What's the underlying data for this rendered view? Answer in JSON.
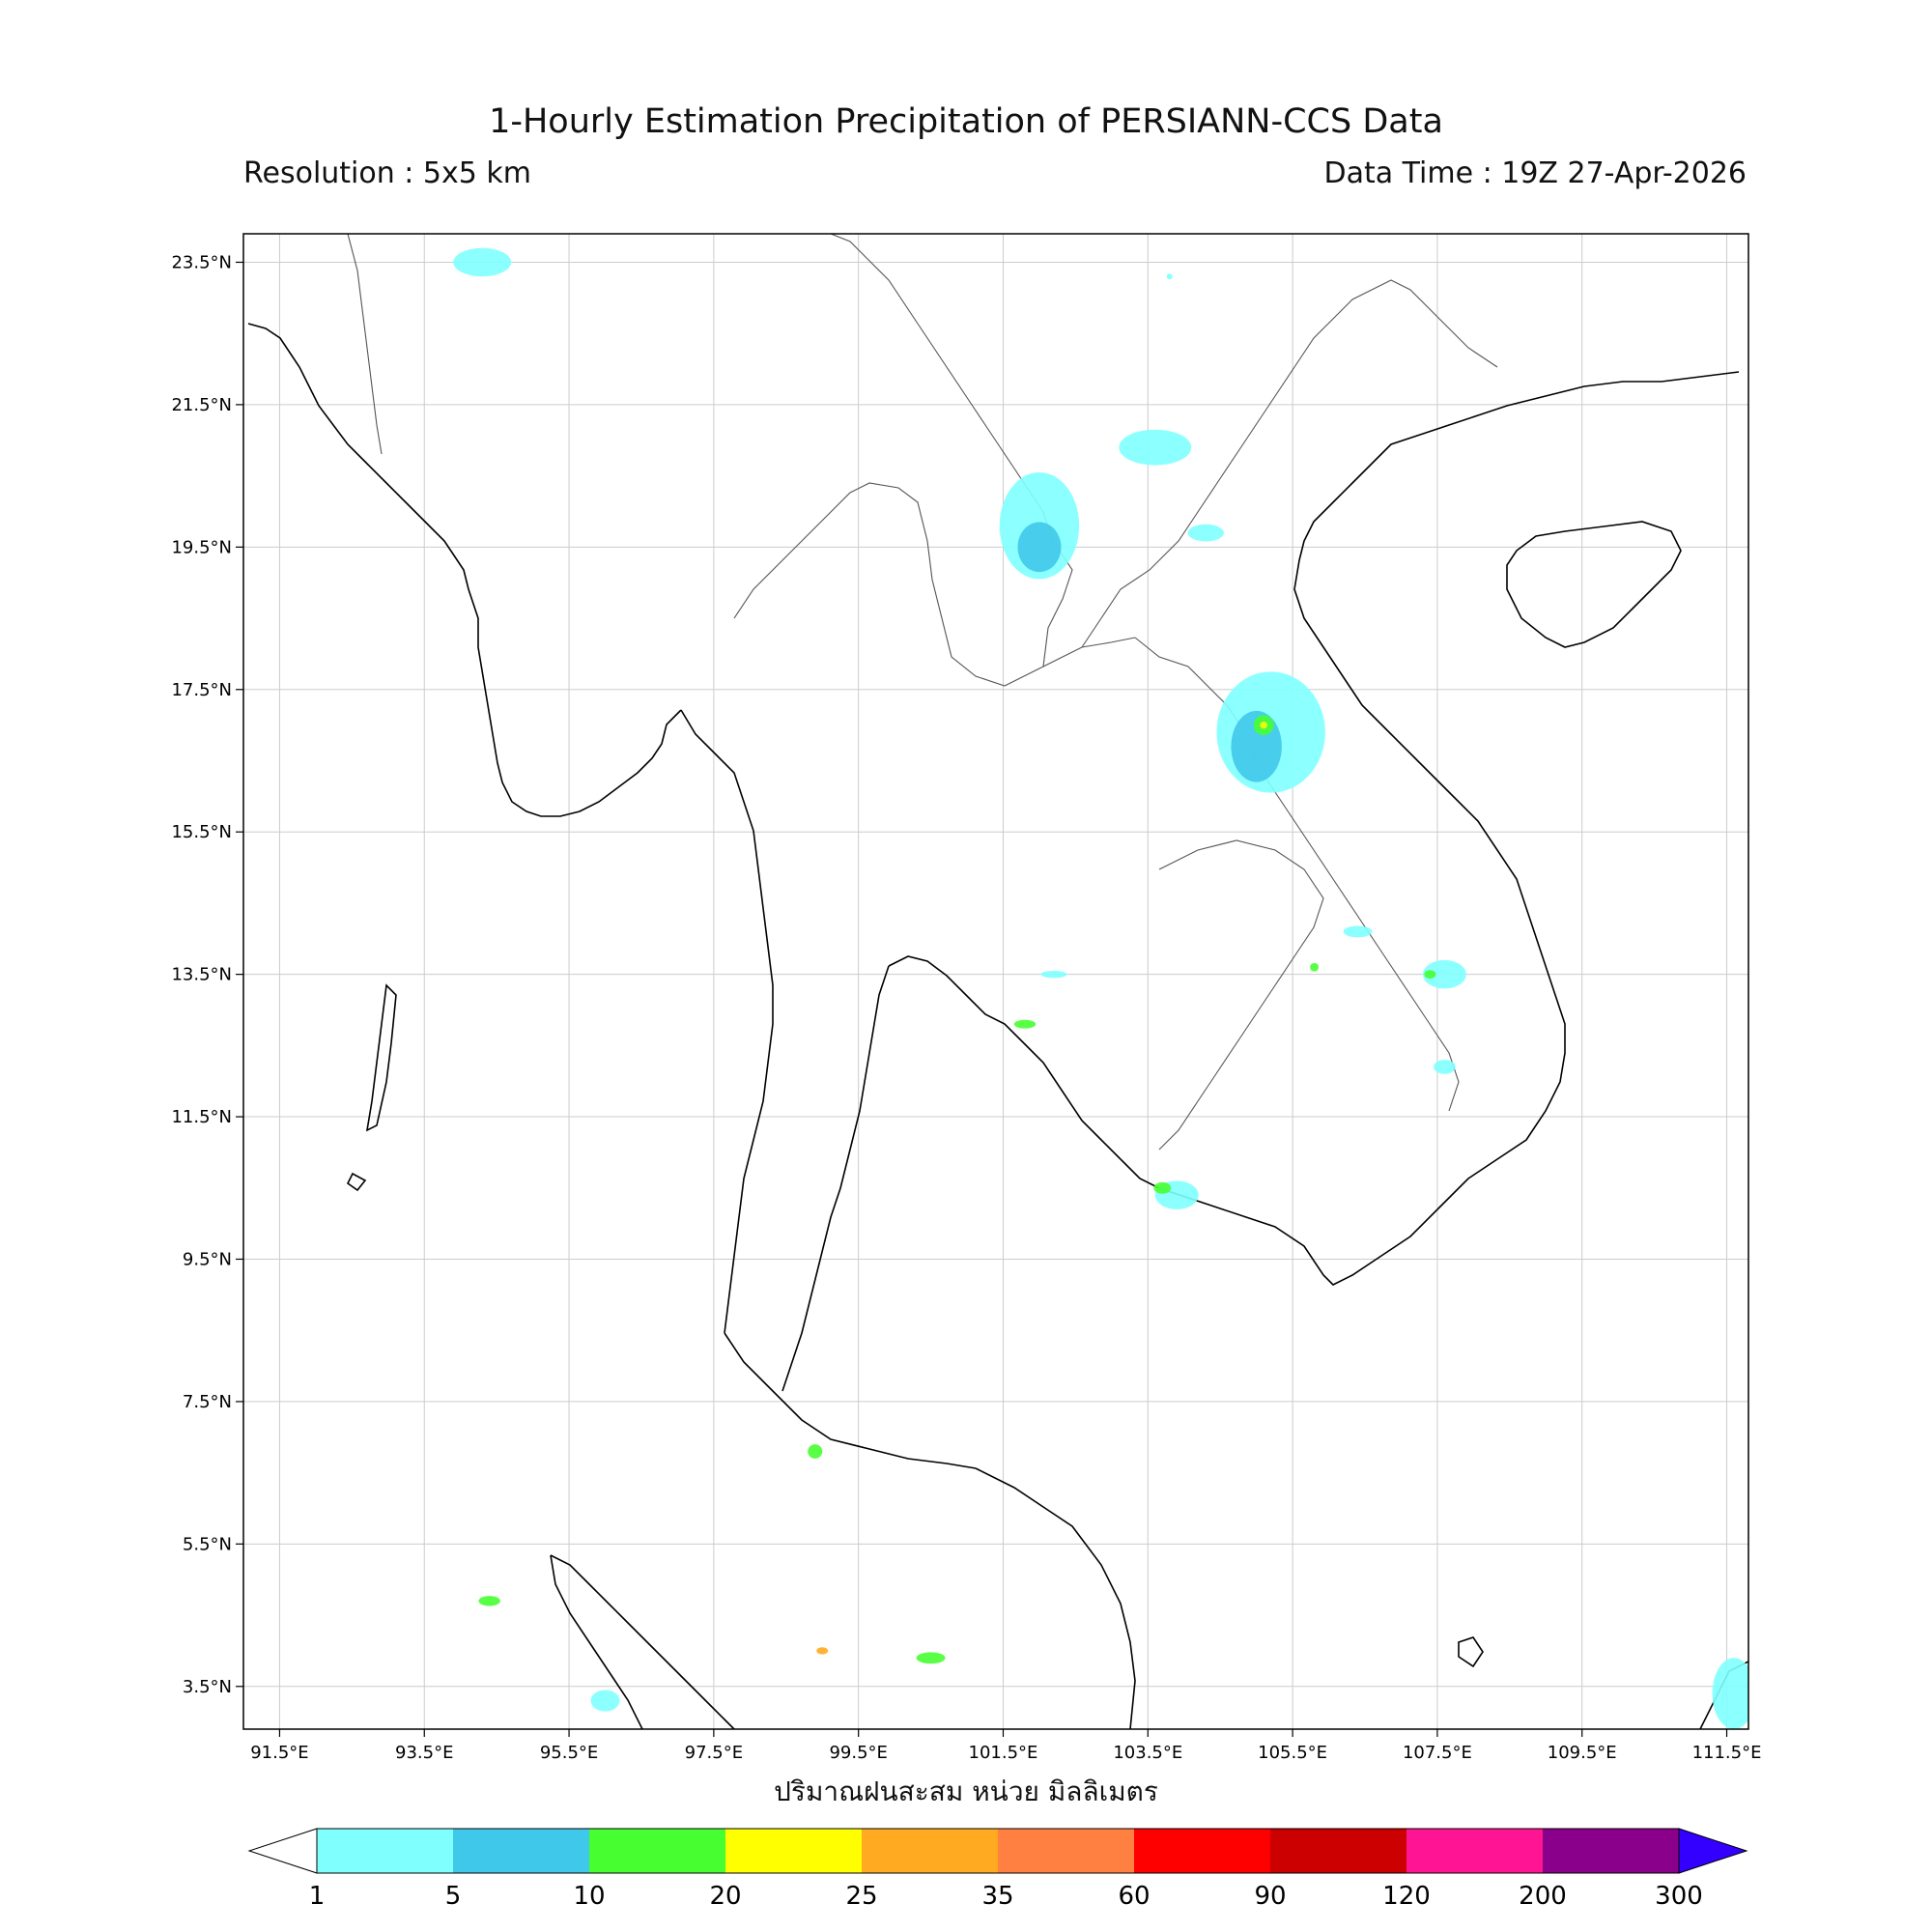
{
  "title": "1-Hourly Estimation Precipitation of PERSIANN-CCS Data",
  "resolution": "Resolution : 5x5 km",
  "data_time": "Data Time : 19Z 27-Apr-2026",
  "x_ticks": [
    "91.5°E",
    "93.5°E",
    "95.5°E",
    "97.5°E",
    "99.5°E",
    "101.5°E",
    "103.5°E",
    "105.5°E",
    "107.5°E",
    "109.5°E",
    "111.5°E"
  ],
  "y_ticks": [
    "23.5°N",
    "21.5°N",
    "19.5°N",
    "17.5°N",
    "15.5°N",
    "13.5°N",
    "11.5°N",
    "9.5°N",
    "7.5°N",
    "5.5°N",
    "3.5°N"
  ],
  "units_label": "ปริมาณฝนสะสม หน่วย มิลลิเมตร",
  "colorbar": {
    "levels": [
      "1",
      "5",
      "10",
      "20",
      "25",
      "35",
      "60",
      "90",
      "120",
      "200",
      "300"
    ],
    "colors": [
      "#80ffff",
      "#40c8ea",
      "#47ff30",
      "#ffff00",
      "#ffaa20",
      "#ff8040",
      "#ff0000",
      "#cc0000",
      "#ff1493",
      "#8b008b",
      "#3300ff"
    ]
  },
  "map_extent": {
    "lon": [
      91.0,
      111.8
    ],
    "lat": [
      2.9,
      23.9
    ]
  },
  "rain_cells": [
    {
      "lon": 102.0,
      "lat": 19.8,
      "rlon": 0.55,
      "rlat": 0.75,
      "level": "1"
    },
    {
      "lon": 102.0,
      "lat": 19.5,
      "rlon": 0.3,
      "rlat": 0.35,
      "level": "5"
    },
    {
      "lon": 103.6,
      "lat": 20.9,
      "rlon": 0.5,
      "rlat": 0.25,
      "level": "1"
    },
    {
      "lon": 104.3,
      "lat": 19.7,
      "rlon": 0.25,
      "rlat": 0.12,
      "level": "1"
    },
    {
      "lon": 94.3,
      "lat": 23.5,
      "rlon": 0.4,
      "rlat": 0.2,
      "level": "1"
    },
    {
      "lon": 105.2,
      "lat": 16.9,
      "rlon": 0.75,
      "rlat": 0.85,
      "level": "1"
    },
    {
      "lon": 105.0,
      "lat": 16.7,
      "rlon": 0.35,
      "rlat": 0.5,
      "level": "5"
    },
    {
      "lon": 105.1,
      "lat": 17.0,
      "rlon": 0.14,
      "rlat": 0.14,
      "level": "10"
    },
    {
      "lon": 105.1,
      "lat": 17.0,
      "rlon": 0.05,
      "rlat": 0.05,
      "level": "20"
    },
    {
      "lon": 107.6,
      "lat": 13.5,
      "rlon": 0.3,
      "rlat": 0.2,
      "level": "1"
    },
    {
      "lon": 107.4,
      "lat": 13.5,
      "rlon": 0.08,
      "rlat": 0.06,
      "level": "10"
    },
    {
      "lon": 103.9,
      "lat": 10.4,
      "rlon": 0.3,
      "rlat": 0.2,
      "level": "1"
    },
    {
      "lon": 103.7,
      "lat": 10.5,
      "rlon": 0.12,
      "rlat": 0.08,
      "level": "10"
    },
    {
      "lon": 111.6,
      "lat": 3.4,
      "rlon": 0.3,
      "rlat": 0.5,
      "level": "1"
    },
    {
      "lon": 106.4,
      "lat": 14.1,
      "rlon": 0.2,
      "rlat": 0.08,
      "level": "1"
    },
    {
      "lon": 105.8,
      "lat": 13.6,
      "rlon": 0.06,
      "rlat": 0.06,
      "level": "10"
    },
    {
      "lon": 102.2,
      "lat": 13.5,
      "rlon": 0.18,
      "rlat": 0.05,
      "level": "1"
    },
    {
      "lon": 101.8,
      "lat": 12.8,
      "rlon": 0.15,
      "rlat": 0.06,
      "level": "10"
    },
    {
      "lon": 98.9,
      "lat": 6.8,
      "rlon": 0.1,
      "rlat": 0.1,
      "level": "10"
    },
    {
      "lon": 100.5,
      "lat": 3.9,
      "rlon": 0.2,
      "rlat": 0.08,
      "level": "10"
    },
    {
      "lon": 99.0,
      "lat": 4.0,
      "rlon": 0.08,
      "rlat": 0.05,
      "level": "25"
    },
    {
      "lon": 94.4,
      "lat": 4.7,
      "rlon": 0.15,
      "rlat": 0.07,
      "level": "10"
    },
    {
      "lon": 96.0,
      "lat": 3.3,
      "rlon": 0.2,
      "rlat": 0.15,
      "level": "1"
    },
    {
      "lon": 107.6,
      "lat": 12.2,
      "rlon": 0.15,
      "rlat": 0.1,
      "level": "1"
    },
    {
      "lon": 103.8,
      "lat": 23.3,
      "rlon": 0.0,
      "rlat": 0.0,
      "level": "1"
    }
  ]
}
